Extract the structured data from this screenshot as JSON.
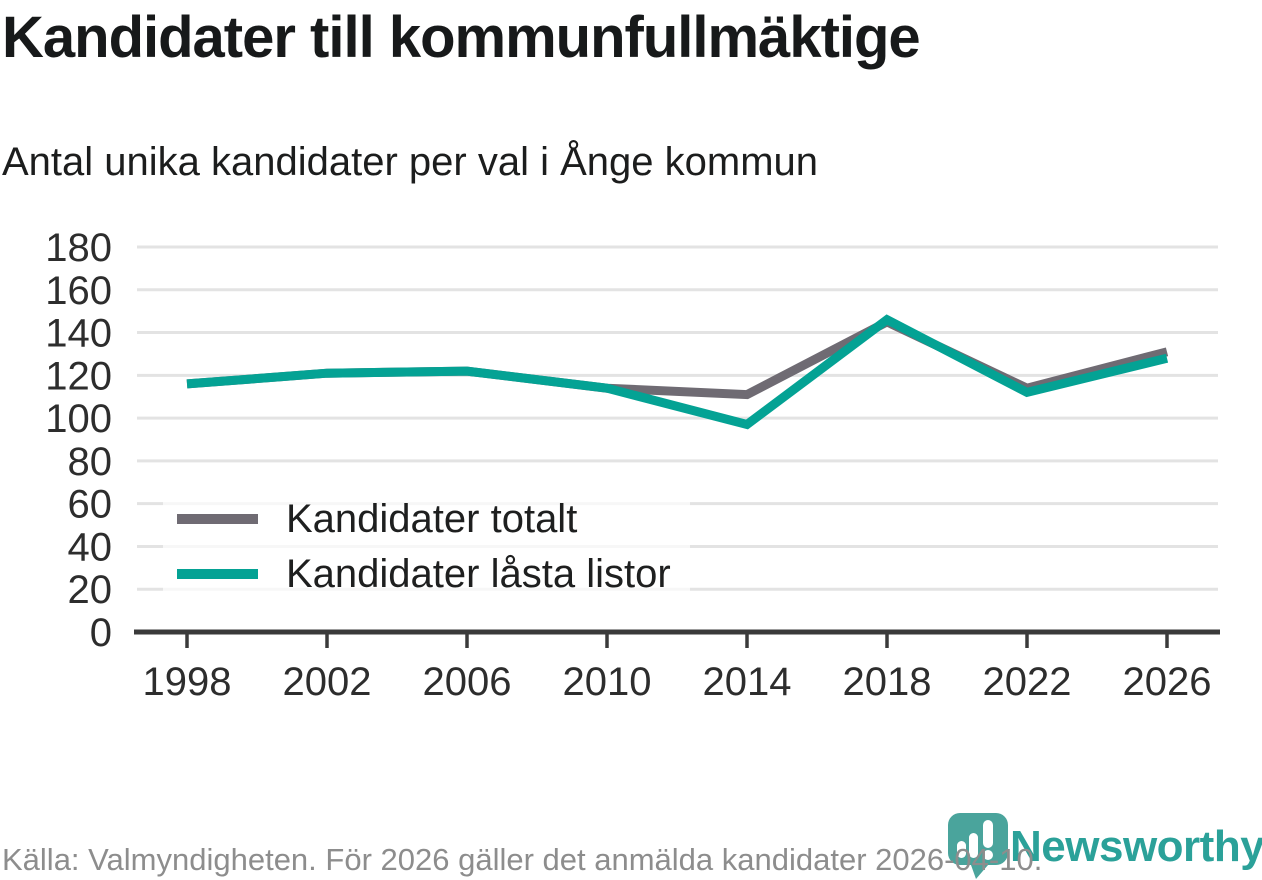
{
  "header": {
    "title": "Kandidater till kommunfullmäktige",
    "subtitle": "Antal unika kandidater per val i Ånge kommun"
  },
  "chart_data": {
    "type": "line",
    "categories": [
      "1998",
      "2002",
      "2006",
      "2010",
      "2014",
      "2018",
      "2022",
      "2026"
    ],
    "series": [
      {
        "name": "Kandidater totalt",
        "color": "#6f6b73",
        "values": [
          116,
          121,
          122,
          114,
          111,
          145,
          114,
          131
        ]
      },
      {
        "name": "Kandidater låsta listor",
        "color": "#04a294",
        "values": [
          116,
          121,
          122,
          114,
          97,
          146,
          112,
          128
        ]
      }
    ],
    "title": "Kandidater till kommunfullmäktige",
    "subtitle": "Antal unika kandidater per val i Ånge kommun",
    "xlabel": "",
    "ylabel": "",
    "ylim": [
      0,
      180
    ],
    "ytick_step": 20,
    "grid": "horizontal",
    "legend_position": "inside-bottom-left"
  },
  "footer": {
    "source": "Källa: Valmyndigheten. För 2026 gäller det anmälda kandidater 2026-04-10.",
    "logo_text": "Newsworthy"
  },
  "colors": {
    "accent_teal": "#04a294",
    "line_gray": "#6f6b73",
    "logo_pin_teal": "#4aa49c",
    "wordmark_teal": "#2ba199",
    "gridline": "#e3e3e3",
    "axis": "#3a3a3a",
    "tick_label": "#2d2d2d",
    "footer_gray": "#8d8d8d"
  }
}
